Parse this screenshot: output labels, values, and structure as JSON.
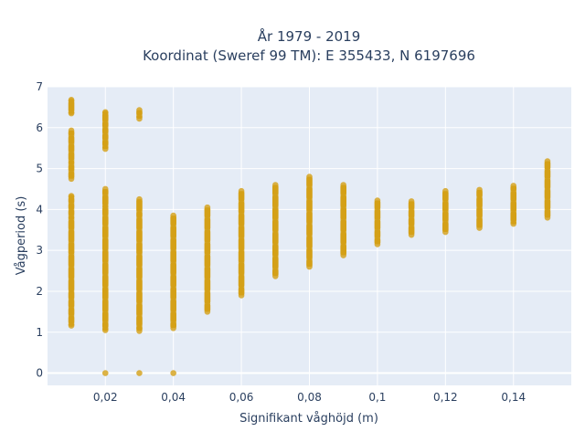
{
  "chart_data": {
    "type": "scatter",
    "title_lines": [
      "År 1979 - 2019",
      "Koordinat (Sweref 99 TM): E 355433, N 6197696"
    ],
    "xlabel": "Signifikant våghöjd (m)",
    "ylabel": "Vågperiod (s)",
    "xlim": [
      0.003,
      0.157
    ],
    "ylim": [
      -0.3,
      7.0
    ],
    "x_ticks": [
      0.02,
      0.04,
      0.06,
      0.08,
      0.1,
      0.12,
      0.14
    ],
    "x_tick_labels": [
      "0,02",
      "0,04",
      "0,06",
      "0,08",
      "0,1",
      "0,12",
      "0,14"
    ],
    "y_ticks": [
      0,
      1,
      2,
      3,
      4,
      5,
      6,
      7
    ],
    "y_tick_labels": [
      "0",
      "1",
      "2",
      "3",
      "4",
      "5",
      "6",
      "7"
    ],
    "grid": true,
    "marker_color": "#D4A017",
    "plot_background": "#E5ECF6",
    "series": [
      {
        "points": [
          {
            "x": 0.01,
            "y": 6.68
          },
          {
            "x": 0.01,
            "y": 6.65
          },
          {
            "x": 0.01,
            "y": 6.38
          },
          {
            "x": 0.01,
            "y": 6.35
          },
          {
            "x": 0.01,
            "y": 5.93
          },
          {
            "x": 0.01,
            "y": 5.8
          },
          {
            "x": 0.01,
            "y": 5.6
          },
          {
            "x": 0.01,
            "y": 5.4
          },
          {
            "x": 0.01,
            "y": 5.2
          },
          {
            "x": 0.01,
            "y": 5.1
          },
          {
            "x": 0.01,
            "y": 4.93
          },
          {
            "x": 0.01,
            "y": 4.75
          },
          {
            "x": 0.01,
            "y": 4.33
          },
          {
            "x": 0.01,
            "y": 4.3
          },
          {
            "x": 0.01,
            "y": 4.15
          },
          {
            "x": 0.01,
            "y": 4.0
          },
          {
            "x": 0.01,
            "y": 3.85
          },
          {
            "x": 0.01,
            "y": 3.75
          },
          {
            "x": 0.01,
            "y": 3.5
          },
          {
            "x": 0.01,
            "y": 3.2
          },
          {
            "x": 0.01,
            "y": 2.9
          },
          {
            "x": 0.01,
            "y": 2.6
          },
          {
            "x": 0.01,
            "y": 2.3
          },
          {
            "x": 0.01,
            "y": 2.0
          },
          {
            "x": 0.01,
            "y": 1.8
          },
          {
            "x": 0.01,
            "y": 1.6
          },
          {
            "x": 0.01,
            "y": 1.4
          },
          {
            "x": 0.01,
            "y": 1.2
          },
          {
            "x": 0.01,
            "y": 1.16
          },
          {
            "x": 0.02,
            "y": 6.38
          },
          {
            "x": 0.02,
            "y": 6.35
          },
          {
            "x": 0.02,
            "y": 6.15
          },
          {
            "x": 0.02,
            "y": 6.0
          },
          {
            "x": 0.02,
            "y": 5.85
          },
          {
            "x": 0.02,
            "y": 5.7
          },
          {
            "x": 0.02,
            "y": 5.55
          },
          {
            "x": 0.02,
            "y": 5.48
          },
          {
            "x": 0.02,
            "y": 4.5
          },
          {
            "x": 0.02,
            "y": 4.35
          },
          {
            "x": 0.02,
            "y": 4.1
          },
          {
            "x": 0.02,
            "y": 4.05
          },
          {
            "x": 0.02,
            "y": 3.85
          },
          {
            "x": 0.02,
            "y": 3.6
          },
          {
            "x": 0.02,
            "y": 3.3
          },
          {
            "x": 0.02,
            "y": 3.0
          },
          {
            "x": 0.02,
            "y": 2.7
          },
          {
            "x": 0.02,
            "y": 2.4
          },
          {
            "x": 0.02,
            "y": 2.1
          },
          {
            "x": 0.02,
            "y": 1.8
          },
          {
            "x": 0.02,
            "y": 1.5
          },
          {
            "x": 0.02,
            "y": 1.25
          },
          {
            "x": 0.02,
            "y": 1.1
          },
          {
            "x": 0.02,
            "y": 1.05
          },
          {
            "x": 0.02,
            "y": 0.0
          },
          {
            "x": 0.03,
            "y": 6.43
          },
          {
            "x": 0.03,
            "y": 6.3
          },
          {
            "x": 0.03,
            "y": 6.22
          },
          {
            "x": 0.03,
            "y": 4.25
          },
          {
            "x": 0.03,
            "y": 3.95
          },
          {
            "x": 0.03,
            "y": 3.8
          },
          {
            "x": 0.03,
            "y": 3.5
          },
          {
            "x": 0.03,
            "y": 3.2
          },
          {
            "x": 0.03,
            "y": 2.9
          },
          {
            "x": 0.03,
            "y": 2.6
          },
          {
            "x": 0.03,
            "y": 2.3
          },
          {
            "x": 0.03,
            "y": 2.0
          },
          {
            "x": 0.03,
            "y": 1.7
          },
          {
            "x": 0.03,
            "y": 1.4
          },
          {
            "x": 0.03,
            "y": 1.15
          },
          {
            "x": 0.03,
            "y": 1.03
          },
          {
            "x": 0.03,
            "y": 0.0
          },
          {
            "x": 0.04,
            "y": 3.85
          },
          {
            "x": 0.04,
            "y": 3.6
          },
          {
            "x": 0.04,
            "y": 3.3
          },
          {
            "x": 0.04,
            "y": 3.0
          },
          {
            "x": 0.04,
            "y": 2.7
          },
          {
            "x": 0.04,
            "y": 2.4
          },
          {
            "x": 0.04,
            "y": 2.1
          },
          {
            "x": 0.04,
            "y": 1.8
          },
          {
            "x": 0.04,
            "y": 1.5
          },
          {
            "x": 0.04,
            "y": 1.25
          },
          {
            "x": 0.04,
            "y": 1.1
          },
          {
            "x": 0.04,
            "y": 0.0
          },
          {
            "x": 0.05,
            "y": 4.05
          },
          {
            "x": 0.05,
            "y": 3.8
          },
          {
            "x": 0.05,
            "y": 3.5
          },
          {
            "x": 0.05,
            "y": 3.2
          },
          {
            "x": 0.05,
            "y": 2.9
          },
          {
            "x": 0.05,
            "y": 2.6
          },
          {
            "x": 0.05,
            "y": 2.3
          },
          {
            "x": 0.05,
            "y": 2.0
          },
          {
            "x": 0.05,
            "y": 1.7
          },
          {
            "x": 0.05,
            "y": 1.5
          },
          {
            "x": 0.06,
            "y": 4.45
          },
          {
            "x": 0.06,
            "y": 4.2
          },
          {
            "x": 0.06,
            "y": 3.9
          },
          {
            "x": 0.06,
            "y": 3.6
          },
          {
            "x": 0.06,
            "y": 3.3
          },
          {
            "x": 0.06,
            "y": 3.0
          },
          {
            "x": 0.06,
            "y": 2.7
          },
          {
            "x": 0.06,
            "y": 2.4
          },
          {
            "x": 0.06,
            "y": 2.1
          },
          {
            "x": 0.06,
            "y": 1.9
          },
          {
            "x": 0.07,
            "y": 4.6
          },
          {
            "x": 0.07,
            "y": 4.35
          },
          {
            "x": 0.07,
            "y": 4.05
          },
          {
            "x": 0.07,
            "y": 3.75
          },
          {
            "x": 0.07,
            "y": 3.45
          },
          {
            "x": 0.07,
            "y": 3.15
          },
          {
            "x": 0.07,
            "y": 2.85
          },
          {
            "x": 0.07,
            "y": 2.55
          },
          {
            "x": 0.07,
            "y": 2.37
          },
          {
            "x": 0.08,
            "y": 4.8
          },
          {
            "x": 0.08,
            "y": 4.55
          },
          {
            "x": 0.08,
            "y": 4.25
          },
          {
            "x": 0.08,
            "y": 3.95
          },
          {
            "x": 0.08,
            "y": 3.65
          },
          {
            "x": 0.08,
            "y": 3.35
          },
          {
            "x": 0.08,
            "y": 3.05
          },
          {
            "x": 0.08,
            "y": 2.78
          },
          {
            "x": 0.08,
            "y": 2.6
          },
          {
            "x": 0.09,
            "y": 4.6
          },
          {
            "x": 0.09,
            "y": 4.35
          },
          {
            "x": 0.09,
            "y": 4.05
          },
          {
            "x": 0.09,
            "y": 3.75
          },
          {
            "x": 0.09,
            "y": 3.45
          },
          {
            "x": 0.09,
            "y": 3.15
          },
          {
            "x": 0.09,
            "y": 2.88
          },
          {
            "x": 0.1,
            "y": 4.22
          },
          {
            "x": 0.1,
            "y": 4.0
          },
          {
            "x": 0.1,
            "y": 3.75
          },
          {
            "x": 0.1,
            "y": 3.5
          },
          {
            "x": 0.1,
            "y": 3.3
          },
          {
            "x": 0.1,
            "y": 3.15
          },
          {
            "x": 0.11,
            "y": 4.2
          },
          {
            "x": 0.11,
            "y": 4.0
          },
          {
            "x": 0.11,
            "y": 3.8
          },
          {
            "x": 0.11,
            "y": 3.6
          },
          {
            "x": 0.11,
            "y": 3.38
          },
          {
            "x": 0.12,
            "y": 4.45
          },
          {
            "x": 0.12,
            "y": 4.2
          },
          {
            "x": 0.12,
            "y": 3.95
          },
          {
            "x": 0.12,
            "y": 3.7
          },
          {
            "x": 0.12,
            "y": 3.45
          },
          {
            "x": 0.13,
            "y": 4.48
          },
          {
            "x": 0.13,
            "y": 4.3
          },
          {
            "x": 0.13,
            "y": 4.05
          },
          {
            "x": 0.13,
            "y": 3.8
          },
          {
            "x": 0.13,
            "y": 3.55
          },
          {
            "x": 0.14,
            "y": 4.58
          },
          {
            "x": 0.14,
            "y": 4.45
          },
          {
            "x": 0.14,
            "y": 4.2
          },
          {
            "x": 0.14,
            "y": 3.95
          },
          {
            "x": 0.14,
            "y": 3.7
          },
          {
            "x": 0.14,
            "y": 3.65
          },
          {
            "x": 0.15,
            "y": 5.18
          },
          {
            "x": 0.15,
            "y": 4.98
          },
          {
            "x": 0.15,
            "y": 4.75
          },
          {
            "x": 0.15,
            "y": 4.5
          },
          {
            "x": 0.15,
            "y": 4.25
          },
          {
            "x": 0.15,
            "y": 4.0
          },
          {
            "x": 0.15,
            "y": 3.8
          }
        ]
      }
    ]
  }
}
